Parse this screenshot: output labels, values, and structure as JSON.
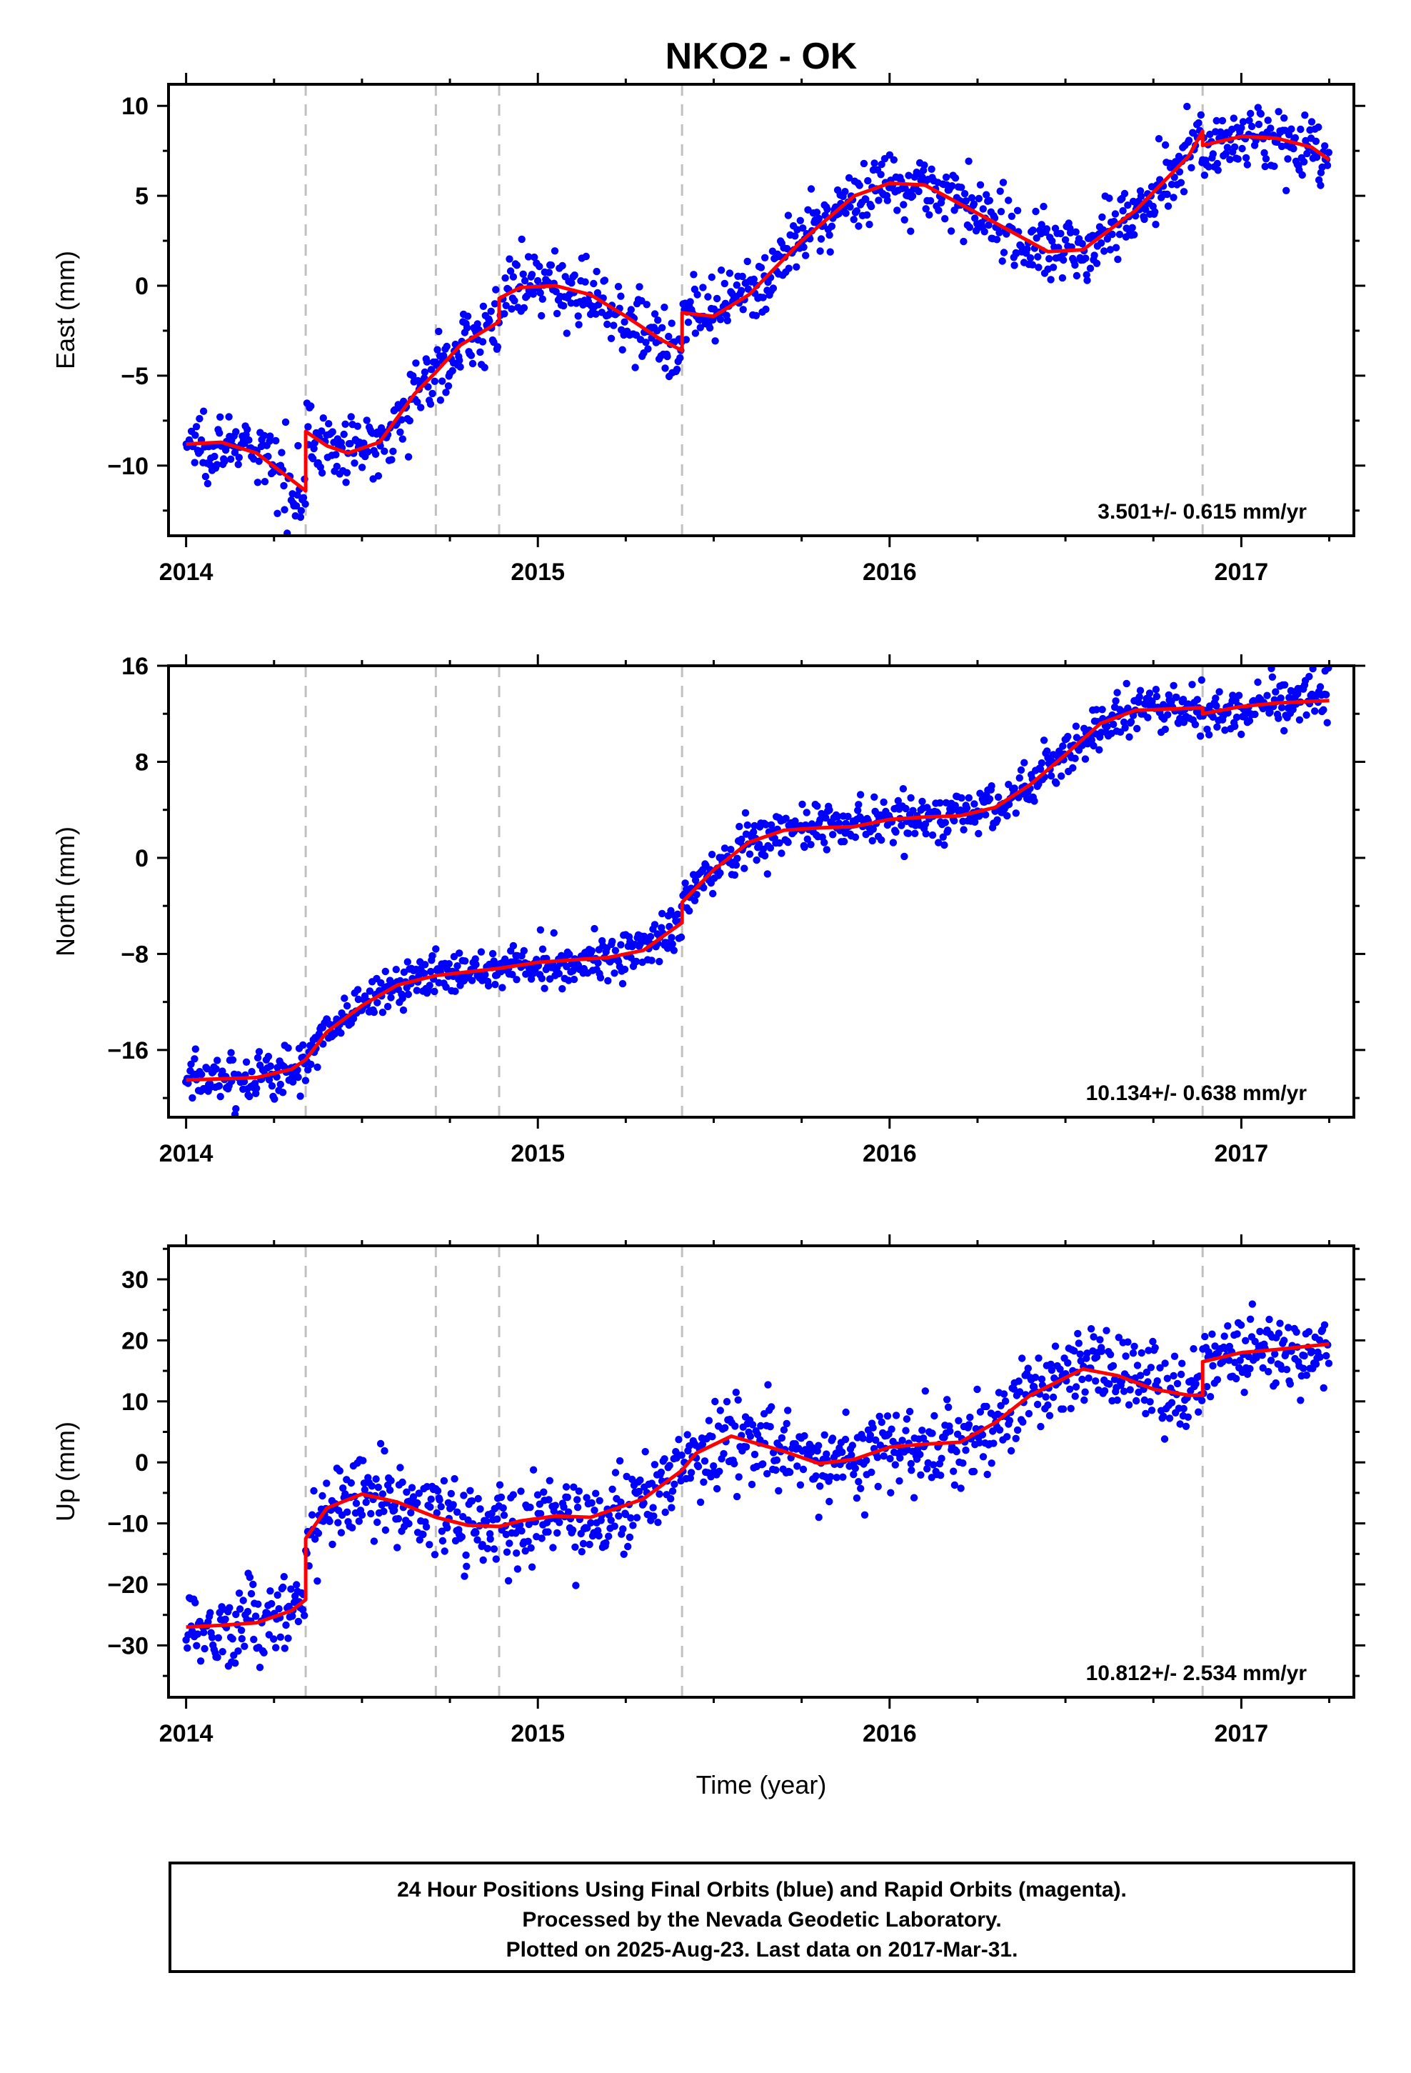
{
  "title": "NKO2 - OK",
  "xlabel": "Time (year)",
  "colors": {
    "final_orbits": "#0000ff",
    "rapid_orbits": "#ff00ff",
    "model": "#ff0000",
    "event_lines": "#c0c0c0"
  },
  "footer": {
    "line1": "24 Hour Positions Using Final Orbits (blue) and Rapid Orbits (magenta).",
    "line2": "Processed by the Nevada Geodetic Laboratory.",
    "line3": "Plotted on 2025-Aug-23. Last data on 2017-Mar-31."
  },
  "chart_data": [
    {
      "type": "scatter",
      "component": "east",
      "ylabel": "East (mm)",
      "rate": "3.501+/- 0.615 mm/yr",
      "xlim": [
        2013.95,
        2017.32
      ],
      "ylim": [
        -13.9,
        11.2
      ],
      "xticks": [
        2014,
        2015,
        2016,
        2017
      ],
      "yticks": [
        -10,
        -5,
        0,
        5,
        10
      ],
      "event_lines": [
        2014.34,
        2014.71,
        2014.89,
        2015.41,
        2016.89
      ],
      "series": [
        {
          "kind": "model",
          "x": [
            2014.0,
            2014.1,
            2014.2,
            2014.3,
            2014.34,
            2014.34,
            2014.4,
            2014.46,
            2014.55,
            2014.65,
            2014.71,
            2014.71,
            2014.78,
            2014.89,
            2014.89,
            2014.95,
            2015.05,
            2015.15,
            2015.25,
            2015.35,
            2015.41,
            2015.41,
            2015.5,
            2015.6,
            2015.75,
            2015.9,
            2016.0,
            2016.1,
            2016.3,
            2016.45,
            2016.55,
            2016.7,
            2016.85,
            2016.89,
            2016.89,
            2017.0,
            2017.1,
            2017.2,
            2017.25
          ],
          "y": [
            -8.8,
            -8.7,
            -9.3,
            -10.8,
            -11.4,
            -8.1,
            -8.9,
            -9.3,
            -8.7,
            -6.0,
            -4.8,
            -4.8,
            -3.3,
            -2.0,
            -0.7,
            -0.1,
            0.0,
            -0.5,
            -1.7,
            -3.0,
            -3.6,
            -1.5,
            -1.7,
            -0.5,
            2.5,
            5.0,
            5.7,
            5.6,
            3.5,
            1.9,
            2.0,
            4.2,
            7.2,
            8.6,
            7.8,
            8.3,
            8.2,
            7.7,
            7.0
          ]
        }
      ],
      "scatter_model": {
        "x_start": 2014.0,
        "x_end": 2017.248,
        "points": 1100,
        "scatter_sd": 0.9,
        "note_free": true
      }
    },
    {
      "type": "scatter",
      "component": "north",
      "ylabel": "North (mm)",
      "rate": "10.134+/- 0.638 mm/yr",
      "xlim": [
        2013.95,
        2017.32
      ],
      "ylim": [
        -21.6,
        16.0
      ],
      "xticks": [
        2014,
        2015,
        2016,
        2017
      ],
      "yticks": [
        -16,
        -8,
        0,
        8,
        16
      ],
      "event_lines": [
        2014.34,
        2014.71,
        2014.89,
        2015.41,
        2016.89
      ],
      "series": [
        {
          "kind": "model",
          "x": [
            2014.0,
            2014.1,
            2014.2,
            2014.3,
            2014.34,
            2014.4,
            2014.5,
            2014.6,
            2014.71,
            2014.8,
            2014.89,
            2015.0,
            2015.1,
            2015.2,
            2015.3,
            2015.41,
            2015.41,
            2015.5,
            2015.6,
            2015.7,
            2015.8,
            2015.9,
            2016.0,
            2016.1,
            2016.2,
            2016.3,
            2016.4,
            2016.5,
            2016.6,
            2016.7,
            2016.89,
            2016.89,
            2017.0,
            2017.1,
            2017.25
          ],
          "y": [
            -18.5,
            -18.4,
            -18.3,
            -17.6,
            -16.8,
            -14.5,
            -12.3,
            -10.6,
            -9.8,
            -9.5,
            -9.2,
            -8.7,
            -8.5,
            -8.3,
            -7.7,
            -5.4,
            -3.7,
            -1.0,
            1.3,
            2.3,
            2.5,
            2.6,
            3.2,
            3.4,
            3.5,
            4.2,
            6.1,
            8.6,
            11.2,
            12.3,
            12.5,
            12.0,
            12.6,
            12.9,
            13.1
          ]
        }
      ],
      "scatter_model": {
        "x_start": 2014.0,
        "x_end": 2017.248,
        "points": 1100,
        "scatter_sd": 1.0,
        "note_free": true
      }
    },
    {
      "type": "scatter",
      "component": "up",
      "ylabel": "Up (mm)",
      "rate": "10.812+/- 2.534 mm/yr",
      "xlim": [
        2013.95,
        2017.32
      ],
      "ylim": [
        -38.5,
        35.5
      ],
      "xticks": [
        2014,
        2015,
        2016,
        2017
      ],
      "yticks": [
        -30,
        -20,
        -10,
        0,
        10,
        20,
        30
      ],
      "event_lines": [
        2014.34,
        2014.71,
        2014.89,
        2015.41,
        2016.89
      ],
      "series": [
        {
          "kind": "model",
          "x": [
            2014.0,
            2014.1,
            2014.2,
            2014.3,
            2014.34,
            2014.34,
            2014.4,
            2014.5,
            2014.6,
            2014.71,
            2014.8,
            2014.89,
            2014.95,
            2015.05,
            2015.15,
            2015.3,
            2015.41,
            2015.45,
            2015.55,
            2015.7,
            2015.8,
            2015.9,
            2016.0,
            2016.1,
            2016.2,
            2016.3,
            2016.4,
            2016.55,
            2016.65,
            2016.75,
            2016.85,
            2016.89,
            2016.89,
            2017.0,
            2017.1,
            2017.25
          ],
          "y": [
            -27.0,
            -26.7,
            -26.3,
            -24.3,
            -22.5,
            -12.5,
            -7.5,
            -5.2,
            -6.5,
            -9.0,
            -10.3,
            -10.5,
            -9.6,
            -8.8,
            -9.0,
            -6.0,
            -1.3,
            1.5,
            4.3,
            1.8,
            -0.2,
            0.5,
            2.5,
            3.0,
            3.3,
            6.5,
            11.0,
            15.3,
            14.2,
            12.0,
            11.0,
            11.0,
            16.5,
            18.0,
            18.5,
            19.4
          ]
        }
      ],
      "scatter_model": {
        "x_start": 2014.0,
        "x_end": 2017.248,
        "points": 1100,
        "scatter_sd": 3.4,
        "note_free": true
      }
    }
  ]
}
